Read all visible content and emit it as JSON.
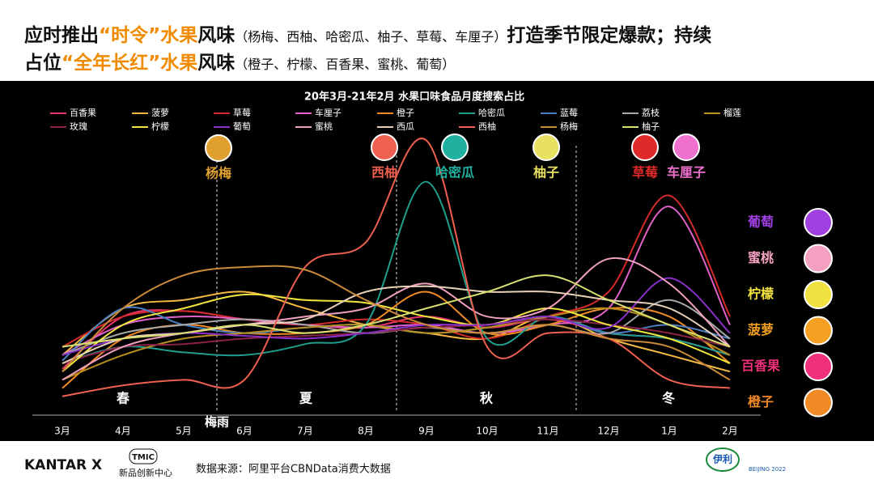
{
  "header": {
    "lines": [
      [
        {
          "text": "应时推出",
          "color": "#111111"
        },
        {
          "text": "“时令”",
          "color": "#f08a00"
        },
        {
          "text": "水果",
          "color": "#f08a00"
        },
        {
          "text": "风味",
          "color": "#111111"
        },
        {
          "text": "（杨梅、西柚、哈密瓜、柚子、草莓、车厘子）",
          "color": "#111111",
          "style": "note"
        },
        {
          "text": "打造季节限定爆款；持续",
          "color": "#111111"
        }
      ],
      [
        {
          "text": "占位",
          "color": "#111111"
        },
        {
          "text": "“全年长红”",
          "color": "#f08a00"
        },
        {
          "text": "水果",
          "color": "#f08a00"
        },
        {
          "text": "风味",
          "color": "#111111"
        },
        {
          "text": "（橙子、柠檬、百香果、蜜桃、葡萄）",
          "color": "#111111",
          "style": "note"
        }
      ]
    ]
  },
  "chart_data": {
    "type": "line",
    "title": "20年3月-21年2月 水果口味食品月度搜索占比",
    "categories": [
      "3月",
      "4月",
      "5月",
      "6月",
      "7月",
      "8月",
      "9月",
      "10月",
      "11月",
      "12月",
      "1月",
      "2月"
    ],
    "ylim": [
      0,
      100
    ],
    "series": [
      {
        "name": "百香果",
        "color": "#e8336f",
        "values": [
          13,
          32,
          34,
          31,
          29,
          28,
          32,
          28,
          31,
          26,
          24,
          18
        ]
      },
      {
        "name": "菠萝",
        "color": "#f5b942",
        "values": [
          18,
          35,
          38,
          41,
          35,
          29,
          26,
          24,
          32,
          24,
          18,
          12
        ]
      },
      {
        "name": "草莓",
        "color": "#d42a2a",
        "values": [
          21,
          32,
          34,
          31,
          29,
          31,
          29,
          24,
          32,
          41,
          76,
          32
        ]
      },
      {
        "name": "车厘子",
        "color": "#e062c8",
        "values": [
          18,
          29,
          32,
          31,
          29,
          28,
          29,
          26,
          29,
          35,
          72,
          29
        ]
      },
      {
        "name": "橙子",
        "color": "#f08a24",
        "values": [
          6,
          24,
          29,
          26,
          26,
          29,
          41,
          26,
          29,
          35,
          32,
          15
        ]
      },
      {
        "name": "哈密瓜",
        "color": "#1f9e8f",
        "values": [
          15,
          21,
          19,
          18,
          22,
          29,
          81,
          24,
          32,
          26,
          24,
          18
        ]
      },
      {
        "name": "蓝莓",
        "color": "#4a7fc1",
        "values": [
          16,
          35,
          29,
          26,
          28,
          29,
          26,
          28,
          32,
          26,
          29,
          24
        ]
      },
      {
        "name": "荔枝",
        "color": "#a8a8a8",
        "values": [
          18,
          26,
          29,
          31,
          29,
          26,
          28,
          26,
          29,
          26,
          38,
          24
        ]
      },
      {
        "name": "榴莲",
        "color": "#b8901e",
        "values": [
          9,
          18,
          24,
          26,
          28,
          29,
          26,
          28,
          32,
          35,
          29,
          18
        ]
      },
      {
        "name": "玫瑰",
        "color": "#8a2346",
        "values": [
          15,
          21,
          22,
          24,
          25,
          26,
          28,
          29,
          31,
          29,
          26,
          21
        ]
      },
      {
        "name": "柠檬",
        "color": "#f2e640",
        "values": [
          12,
          29,
          35,
          40,
          38,
          37,
          32,
          29,
          35,
          29,
          24,
          15
        ]
      },
      {
        "name": "葡萄",
        "color": "#8b2fc9",
        "values": [
          18,
          24,
          26,
          25,
          24,
          26,
          29,
          29,
          32,
          28,
          46,
          26
        ]
      },
      {
        "name": "蜜桃",
        "color": "#f0a0c0",
        "values": [
          9,
          21,
          26,
          29,
          32,
          35,
          44,
          32,
          35,
          53,
          44,
          21
        ]
      },
      {
        "name": "西瓜",
        "color": "#e8d0b8",
        "values": [
          15,
          24,
          26,
          29,
          31,
          41,
          43,
          41,
          41,
          38,
          35,
          21
        ]
      },
      {
        "name": "西柚",
        "color": "#f06050",
        "values": [
          3,
          7,
          9,
          9,
          50,
          59,
          96,
          21,
          26,
          24,
          9,
          6
        ]
      },
      {
        "name": "杨梅",
        "color": "#c98a3a",
        "values": [
          12,
          35,
          47,
          50,
          49,
          38,
          29,
          26,
          29,
          24,
          21,
          9
        ]
      },
      {
        "name": "柚子",
        "color": "#d8e070",
        "values": [
          21,
          24,
          26,
          29,
          26,
          29,
          35,
          41,
          47,
          38,
          29,
          21
        ]
      }
    ],
    "seasons": [
      "春",
      "夏",
      "秋",
      "冬"
    ],
    "rainy_season": "梅雨",
    "seasonal_callouts": [
      {
        "text": "杨梅",
        "color": "#e0a030"
      },
      {
        "text": "西柚",
        "color": "#f06050"
      },
      {
        "text": "哈密瓜",
        "color": "#1fb0a0"
      },
      {
        "text": "柚子",
        "color": "#e8e060"
      },
      {
        "text": "草莓",
        "color": "#e02a2a"
      },
      {
        "text": "车厘子",
        "color": "#f070d0"
      }
    ],
    "year_round_labels": [
      {
        "text": "葡萄",
        "color": "#a040e0"
      },
      {
        "text": "蜜桃",
        "color": "#f4a0c0"
      },
      {
        "text": "柠檬",
        "color": "#f0e040"
      },
      {
        "text": "菠萝",
        "color": "#f5a020"
      },
      {
        "text": "百香果",
        "color": "#f0307a"
      },
      {
        "text": "橙子",
        "color": "#f08a24"
      }
    ]
  },
  "footer": {
    "brand": "KANTAR X",
    "tmic": "TMIC",
    "tmic_name": "新品创新中心",
    "source": "数据来源：阿里平台CBNData消费大数据",
    "yili": "伊利",
    "games": "BEIJING 2022"
  }
}
